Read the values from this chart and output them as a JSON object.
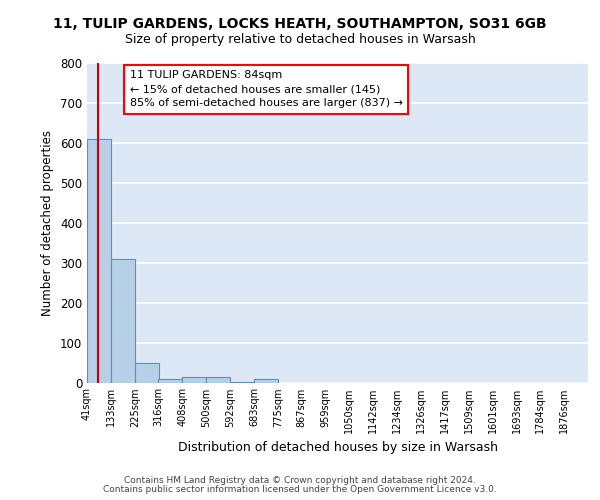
{
  "title_line1": "11, TULIP GARDENS, LOCKS HEATH, SOUTHAMPTON, SO31 6GB",
  "title_line2": "Size of property relative to detached houses in Warsash",
  "xlabel": "Distribution of detached houses by size in Warsash",
  "ylabel": "Number of detached properties",
  "footer_line1": "Contains HM Land Registry data © Crown copyright and database right 2024.",
  "footer_line2": "Contains public sector information licensed under the Open Government Licence v3.0.",
  "bin_labels": [
    "41sqm",
    "133sqm",
    "225sqm",
    "316sqm",
    "408sqm",
    "500sqm",
    "592sqm",
    "683sqm",
    "775sqm",
    "867sqm",
    "959sqm",
    "1050sqm",
    "1142sqm",
    "1234sqm",
    "1326sqm",
    "1417sqm",
    "1509sqm",
    "1601sqm",
    "1693sqm",
    "1784sqm",
    "1876sqm"
  ],
  "bar_values": [
    608,
    310,
    50,
    10,
    13,
    13,
    2,
    8,
    0,
    0,
    0,
    0,
    0,
    0,
    0,
    0,
    0,
    0,
    0,
    0,
    0
  ],
  "bar_color": "#b8cfe8",
  "bar_edge_color": "#5b8ec4",
  "bg_color": "#dce8f5",
  "grid_color": "#ffffff",
  "vline_color": "#cc0000",
  "annotation_text_line1": "11 TULIP GARDENS: 84sqm",
  "annotation_text_line2": "← 15% of detached houses are smaller (145)",
  "annotation_text_line3": "85% of semi-detached houses are larger (837) →",
  "ylim": [
    0,
    800
  ],
  "yticks": [
    0,
    100,
    200,
    300,
    400,
    500,
    600,
    700,
    800
  ],
  "bin_edges": [
    41,
    133,
    225,
    316,
    408,
    500,
    592,
    683,
    775,
    867,
    959,
    1050,
    1142,
    1234,
    1326,
    1417,
    1509,
    1601,
    1693,
    1784,
    1876,
    1968
  ],
  "vline_x_data": 84,
  "fig_width": 6.0,
  "fig_height": 5.0,
  "dpi": 100
}
